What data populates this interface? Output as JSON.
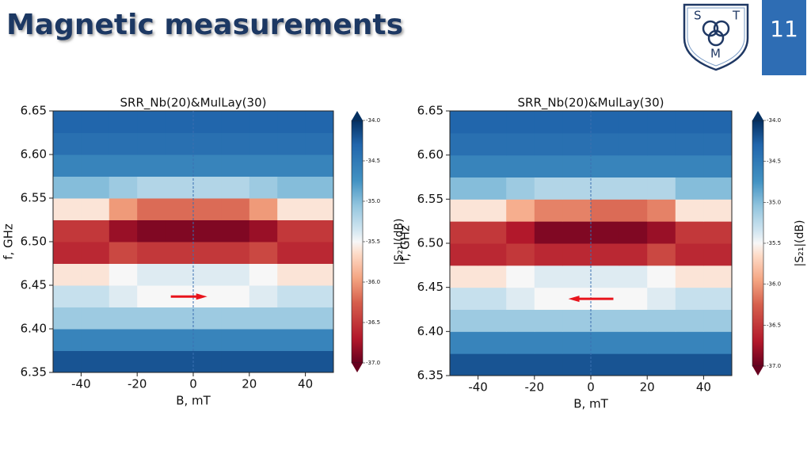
{
  "slide": {
    "title": "Magnetic measurements",
    "page_number": "11",
    "logo": [
      "S",
      "T",
      "M"
    ]
  },
  "chart_data": [
    {
      "type": "heatmap",
      "title": "SRR_Nb(20)&MulLay(30)",
      "x_label": "B, mT",
      "y_label": "f, GHz",
      "colorbar_label": "|S₂₁|(dB)",
      "x_edges": [
        -50,
        -40,
        -30,
        -20,
        -10,
        0,
        10,
        20,
        30,
        40,
        50
      ],
      "y_edges": [
        6.35,
        6.375,
        6.4,
        6.425,
        6.45,
        6.475,
        6.5,
        6.525,
        6.55,
        6.575,
        6.6,
        6.625,
        6.65
      ],
      "z": [
        [
          -34.2,
          -34.2,
          -34.2,
          -34.2,
          -34.2,
          -34.2,
          -34.2,
          -34.2,
          -34.2,
          -34.2
        ],
        [
          -34.6,
          -34.6,
          -34.6,
          -34.6,
          -34.6,
          -34.6,
          -34.6,
          -34.6,
          -34.6,
          -34.6
        ],
        [
          -35.1,
          -35.1,
          -35.1,
          -35.1,
          -35.1,
          -35.1,
          -35.1,
          -35.1,
          -35.1,
          -35.1
        ],
        [
          -35.3,
          -35.3,
          -35.4,
          -35.5,
          -35.5,
          -35.5,
          -35.5,
          -35.4,
          -35.3,
          -35.3
        ],
        [
          -35.6,
          -35.6,
          -35.5,
          -35.4,
          -35.4,
          -35.4,
          -35.4,
          -35.5,
          -35.6,
          -35.6
        ],
        [
          -36.6,
          -36.6,
          -36.4,
          -36.5,
          -36.5,
          -36.5,
          -36.5,
          -36.4,
          -36.6,
          -36.6
        ],
        [
          -36.5,
          -36.5,
          -36.8,
          -36.9,
          -36.9,
          -36.9,
          -36.9,
          -36.8,
          -36.5,
          -36.5
        ],
        [
          -35.6,
          -35.6,
          -36.0,
          -36.2,
          -36.2,
          -36.2,
          -36.2,
          -36.0,
          -35.6,
          -35.6
        ],
        [
          -35.0,
          -35.0,
          -35.1,
          -35.2,
          -35.2,
          -35.2,
          -35.2,
          -35.1,
          -35.0,
          -35.0
        ],
        [
          -34.6,
          -34.6,
          -34.6,
          -34.6,
          -34.6,
          -34.6,
          -34.6,
          -34.6,
          -34.6,
          -34.6
        ],
        [
          -34.4,
          -34.4,
          -34.4,
          -34.4,
          -34.4,
          -34.4,
          -34.4,
          -34.4,
          -34.4,
          -34.4
        ],
        [
          -34.3,
          -34.3,
          -34.3,
          -34.3,
          -34.3,
          -34.3,
          -34.3,
          -34.3,
          -34.3,
          -34.3
        ]
      ],
      "xlim": [
        -50,
        50
      ],
      "ylim": [
        6.35,
        6.65
      ],
      "clim": [
        -37,
        -34
      ],
      "xticks": [
        -40,
        -20,
        0,
        20,
        40
      ],
      "yticks": [
        6.35,
        {
          "value": 6.4,
          "label": "6.40"
        },
        6.45,
        {
          "value": 6.5,
          "label": "6.50"
        },
        6.55,
        {
          "value": 6.6,
          "label": "6.60"
        },
        6.65
      ],
      "cticks": [
        {
          "value": -34,
          "label": "-34.0"
        },
        {
          "value": -34.5,
          "label": "-34.5"
        },
        {
          "value": -35,
          "label": "-35.0"
        },
        {
          "value": -35.5,
          "label": "-35.5"
        },
        {
          "value": -36,
          "label": "-36.0"
        },
        {
          "value": -36.5,
          "label": "-36.5"
        },
        {
          "value": -37,
          "label": "-37.0"
        }
      ],
      "vline": 0,
      "arrow": {
        "x": [
          -8,
          5
        ],
        "y": 6.437,
        "color": "#e8141c"
      }
    },
    {
      "type": "heatmap",
      "title": "SRR_Nb(20)&MulLay(30)",
      "x_label": "B, mT",
      "y_label": "f, GHz",
      "colorbar_label": "|S₂₁|(dB)",
      "x_edges": [
        -50,
        -40,
        -30,
        -20,
        -10,
        0,
        10,
        20,
        30,
        40,
        50
      ],
      "y_edges": [
        6.35,
        6.375,
        6.4,
        6.425,
        6.45,
        6.475,
        6.5,
        6.525,
        6.55,
        6.575,
        6.6,
        6.625,
        6.65
      ],
      "z": [
        [
          -34.2,
          -34.2,
          -34.2,
          -34.2,
          -34.2,
          -34.2,
          -34.2,
          -34.2,
          -34.2,
          -34.2
        ],
        [
          -34.6,
          -34.6,
          -34.6,
          -34.6,
          -34.6,
          -34.6,
          -34.6,
          -34.6,
          -34.6,
          -34.6
        ],
        [
          -35.1,
          -35.1,
          -35.1,
          -35.1,
          -35.1,
          -35.1,
          -35.1,
          -35.1,
          -35.1,
          -35.1
        ],
        [
          -35.3,
          -35.3,
          -35.4,
          -35.5,
          -35.5,
          -35.5,
          -35.5,
          -35.4,
          -35.3,
          -35.3
        ],
        [
          -35.6,
          -35.6,
          -35.5,
          -35.4,
          -35.4,
          -35.4,
          -35.4,
          -35.5,
          -35.6,
          -35.6
        ],
        [
          -36.6,
          -36.6,
          -36.5,
          -36.6,
          -36.6,
          -36.6,
          -36.6,
          -36.4,
          -36.6,
          -36.6
        ],
        [
          -36.5,
          -36.5,
          -36.7,
          -36.9,
          -36.9,
          -36.9,
          -36.9,
          -36.8,
          -36.5,
          -36.5
        ],
        [
          -35.6,
          -35.6,
          -35.9,
          -36.1,
          -36.1,
          -36.2,
          -36.2,
          -36.1,
          -35.6,
          -35.6
        ],
        [
          -35.0,
          -35.0,
          -35.1,
          -35.2,
          -35.2,
          -35.2,
          -35.2,
          -35.2,
          -35.0,
          -35.0
        ],
        [
          -34.6,
          -34.6,
          -34.6,
          -34.6,
          -34.6,
          -34.6,
          -34.6,
          -34.6,
          -34.6,
          -34.6
        ],
        [
          -34.4,
          -34.4,
          -34.4,
          -34.4,
          -34.4,
          -34.4,
          -34.4,
          -34.4,
          -34.4,
          -34.4
        ],
        [
          -34.3,
          -34.3,
          -34.3,
          -34.3,
          -34.3,
          -34.3,
          -34.3,
          -34.3,
          -34.3,
          -34.3
        ]
      ],
      "xlim": [
        -50,
        50
      ],
      "ylim": [
        6.35,
        6.65
      ],
      "clim": [
        -37,
        -34
      ],
      "xticks": [
        -40,
        -20,
        0,
        20,
        40
      ],
      "yticks": [
        6.35,
        {
          "value": 6.4,
          "label": "6.40"
        },
        6.45,
        {
          "value": 6.5,
          "label": "6.50"
        },
        6.55,
        {
          "value": 6.6,
          "label": "6.60"
        },
        6.65
      ],
      "cticks": [
        {
          "value": -34,
          "label": "-34.0"
        },
        {
          "value": -34.5,
          "label": "-34.5"
        },
        {
          "value": -35,
          "label": "-35.0"
        },
        {
          "value": -35.5,
          "label": "-35.5"
        },
        {
          "value": -36,
          "label": "-36.0"
        },
        {
          "value": -36.5,
          "label": "-36.5"
        },
        {
          "value": -37,
          "label": "-37.0"
        }
      ],
      "vline": 0,
      "arrow": {
        "x": [
          8,
          -8
        ],
        "y": 6.437,
        "color": "#e8141c"
      }
    }
  ]
}
